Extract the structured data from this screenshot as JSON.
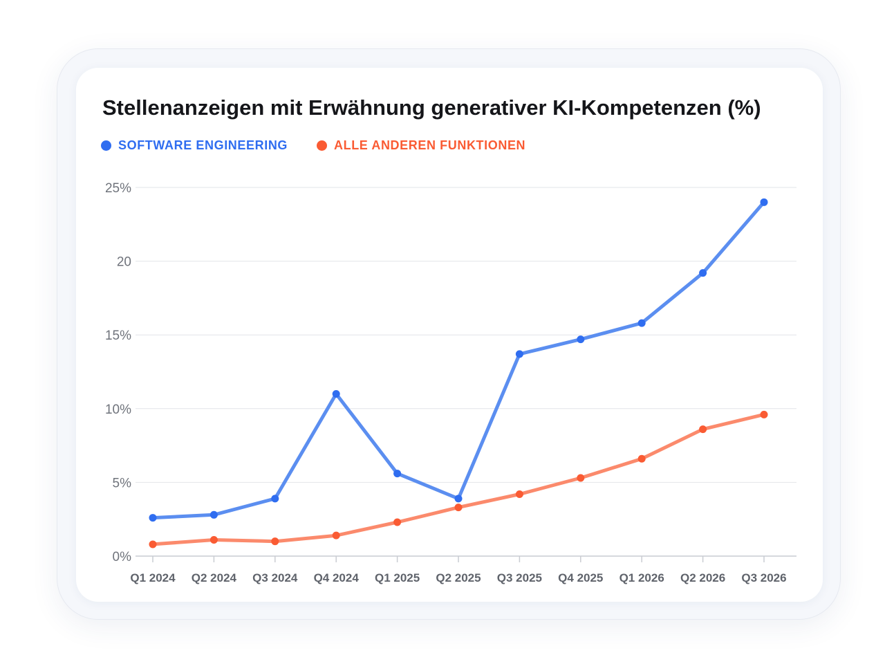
{
  "colors": {
    "software": "#2f6df0",
    "software_line": "#5b8ef0",
    "other": "#fa5b33",
    "other_line": "#fb8a6c",
    "grid": "#e2e4e8",
    "axis": "#c9ccd2"
  },
  "chart_data": {
    "type": "line",
    "title": "Stellenanzeigen mit Erwähnung generativer KI-Kompetenzen (%)",
    "categories": [
      "Q1 2024",
      "Q2 2024",
      "Q3 2024",
      "Q4 2024",
      "Q1 2025",
      "Q2 2025",
      "Q3 2025",
      "Q4 2025",
      "Q1 2026",
      "Q2 2026",
      "Q3 2026"
    ],
    "series": [
      {
        "name": "SOFTWARE ENGINEERING",
        "values": [
          2.6,
          2.8,
          3.9,
          11.0,
          5.6,
          3.9,
          13.7,
          14.7,
          15.8,
          19.2,
          24.0
        ]
      },
      {
        "name": "ALLE ANDEREN FUNKTIONEN",
        "values": [
          0.8,
          1.1,
          1.0,
          1.4,
          2.3,
          3.3,
          4.2,
          5.3,
          6.6,
          8.6,
          9.6
        ]
      }
    ],
    "yticks": [
      0,
      5,
      10,
      15,
      20,
      25
    ],
    "ytick_labels": [
      "0%",
      "5%",
      "10%",
      "15%",
      "20",
      "25%"
    ],
    "ylim": [
      0,
      25
    ],
    "grid": true,
    "legend_position": "top-left"
  }
}
